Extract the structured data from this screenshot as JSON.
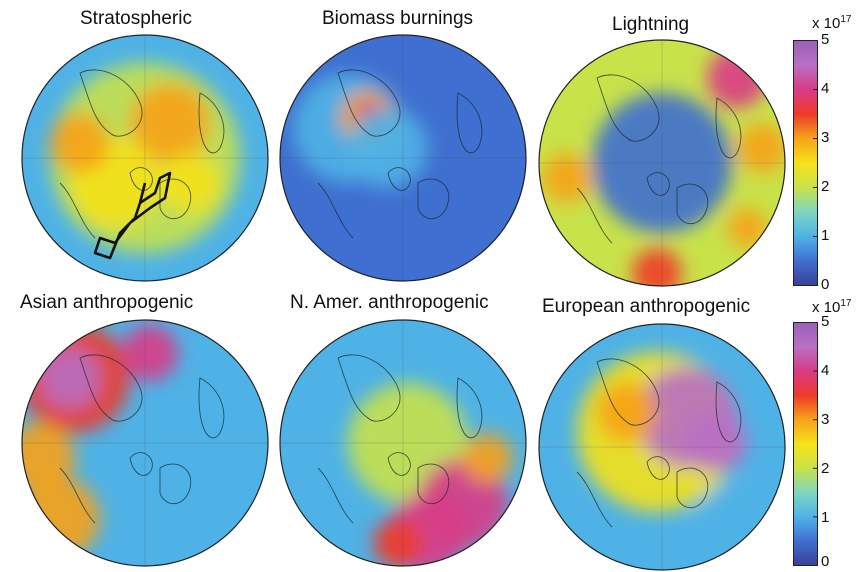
{
  "figure": {
    "top_cut_text": "",
    "panels": [
      {
        "title": "Stratospheric",
        "scheme": "strat",
        "flight_track": true
      },
      {
        "title": "Biomass burnings",
        "scheme": "biomass",
        "flight_track": false
      },
      {
        "title": "Lightning",
        "scheme": "lightning",
        "flight_track": false
      },
      {
        "title": "Asian anthropogenic",
        "scheme": "asian",
        "flight_track": false
      },
      {
        "title": "N. Amer. anthropogenic",
        "scheme": "namer",
        "flight_track": false
      },
      {
        "title": "European anthropogenic",
        "scheme": "europe",
        "flight_track": false
      }
    ]
  },
  "colorbars": [
    {
      "exponent_base": "x 10",
      "exponent_power": "17",
      "ticks": [
        "5",
        "4",
        "3",
        "2",
        "1",
        "0"
      ],
      "range": [
        0,
        5
      ]
    },
    {
      "exponent_base": "x 10",
      "exponent_power": "17",
      "ticks": [
        "5",
        "4",
        "3",
        "2",
        "1",
        "0"
      ],
      "range": [
        0,
        5
      ]
    }
  ],
  "colormap": [
    "#3b3f99",
    "#3f6fd0",
    "#4fb2e6",
    "#7fd6c2",
    "#c8e24a",
    "#f5e21a",
    "#f7a21a",
    "#ee3a2a",
    "#d93b86",
    "#b86fc4",
    "#9b5fb8"
  ]
}
